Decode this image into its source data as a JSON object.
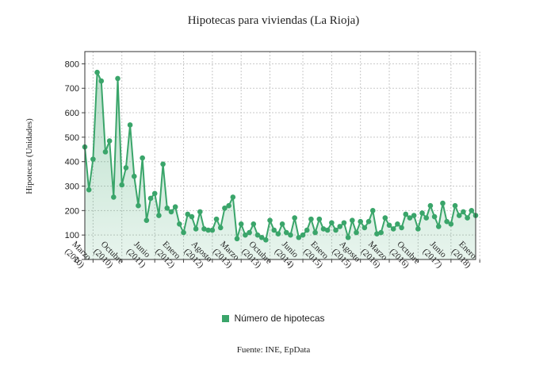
{
  "chart_data": {
    "type": "line",
    "title": "Hipotecas para viviendas (La Rioja)",
    "ylabel": "Hipotecas (Unidades)",
    "xlabel": "",
    "ylim": [
      0,
      850
    ],
    "yticks": [
      0,
      100,
      200,
      300,
      400,
      500,
      600,
      700,
      800
    ],
    "grid": true,
    "legend_position": "bottom",
    "x_start": "Enero 2010",
    "x_ticks": [
      {
        "label": "Marzo (2010)",
        "line1": "Marzo",
        "line2": "(2010)",
        "index": 2
      },
      {
        "label": "Octubre (2010)",
        "line1": "Octubre",
        "line2": "(2010)",
        "index": 9
      },
      {
        "label": "Junio (2011)",
        "line1": "Junio",
        "line2": "(2011)",
        "index": 17
      },
      {
        "label": "Enero (2012)",
        "line1": "Enero",
        "line2": "(2012)",
        "index": 24
      },
      {
        "label": "Agosto (2012)",
        "line1": "Agosto",
        "line2": "(2012)",
        "index": 31
      },
      {
        "label": "Marzo (2013)",
        "line1": "Marzo",
        "line2": "(2013)",
        "index": 38
      },
      {
        "label": "Octubre (2013)",
        "line1": "Octubre",
        "line2": "(2013)",
        "index": 45
      },
      {
        "label": "Junio (2014)",
        "line1": "Junio",
        "line2": "(2014)",
        "index": 53
      },
      {
        "label": "Enero (2015)",
        "line1": "Enero",
        "line2": "(2015)",
        "index": 60
      },
      {
        "label": "Agosto (2015)",
        "line1": "Agosto",
        "line2": "(2015)",
        "index": 67
      },
      {
        "label": "Marzo (2016)",
        "line1": "Marzo",
        "line2": "(2016)",
        "index": 74
      },
      {
        "label": "Octubre (2016)",
        "line1": "Octubre",
        "line2": "(2016)",
        "index": 81
      },
      {
        "label": "Junio (2017)",
        "line1": "Junio",
        "line2": "(2017)",
        "index": 89
      },
      {
        "label": "Enero (2018)",
        "line1": "Enero",
        "line2": "(2018)",
        "index": 96
      }
    ],
    "series": [
      {
        "name": "Número de hipotecas",
        "color": "#3aa56a",
        "fill": "#dff2e6",
        "values": [
          460,
          285,
          410,
          765,
          730,
          440,
          485,
          255,
          740,
          305,
          375,
          550,
          340,
          220,
          415,
          160,
          250,
          270,
          180,
          390,
          210,
          195,
          215,
          145,
          110,
          185,
          175,
          125,
          195,
          125,
          120,
          120,
          165,
          130,
          210,
          220,
          255,
          85,
          145,
          100,
          110,
          145,
          100,
          90,
          80,
          160,
          120,
          105,
          145,
          110,
          100,
          170,
          90,
          100,
          120,
          165,
          110,
          165,
          125,
          120,
          150,
          120,
          135,
          150,
          90,
          160,
          110,
          155,
          130,
          155,
          200,
          105,
          110,
          170,
          140,
          125,
          145,
          130,
          185,
          170,
          180,
          125,
          190,
          170,
          220,
          175,
          135,
          230,
          155,
          145,
          220,
          180,
          195,
          170,
          200,
          180
        ]
      }
    ]
  },
  "legend_label": "Número de hipotecas",
  "source": "Fuente: INE, EpData"
}
